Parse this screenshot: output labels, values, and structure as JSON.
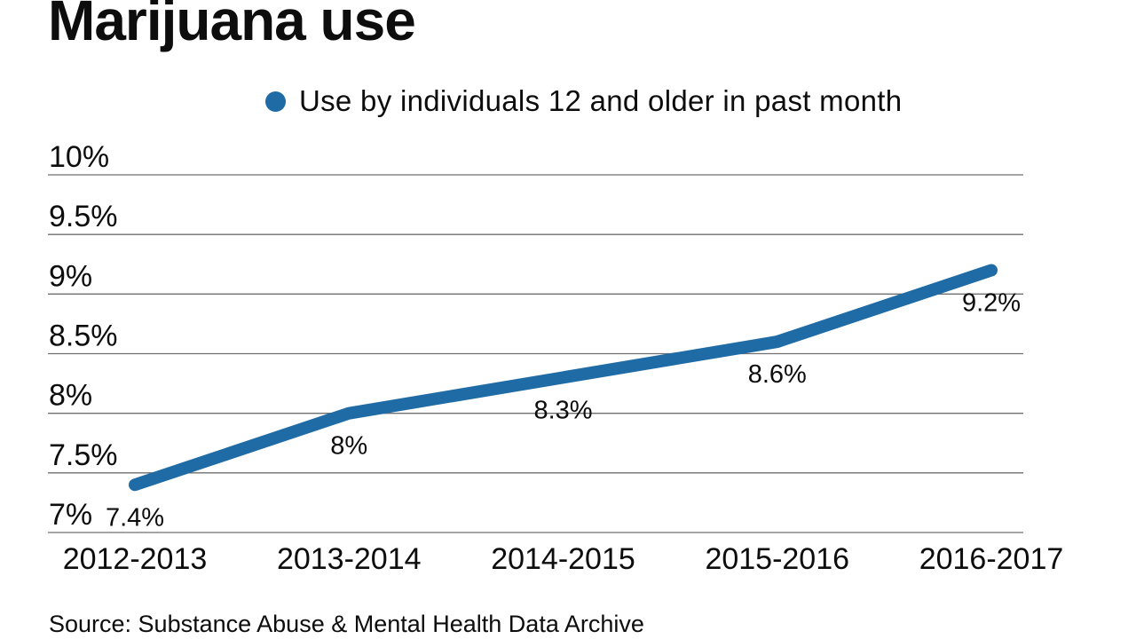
{
  "title": "Marijuana use",
  "legend": {
    "label": "Use by individuals 12 and older in past month"
  },
  "source": "Source: Substance Abuse & Mental Health Data Archive",
  "colors": {
    "line": "#1f6ba6",
    "marker": "#1f6ba6",
    "grid": "#6f6f6f",
    "text": "#0d0d0d"
  },
  "chart_data": {
    "type": "line",
    "title": "Marijuana use",
    "categories": [
      "2012-2013",
      "2013-2014",
      "2014-2015",
      "2015-2016",
      "2016-2017"
    ],
    "series": [
      {
        "name": "Use by individuals 12 and older in past month",
        "values": [
          7.4,
          8.0,
          8.3,
          8.6,
          9.2
        ],
        "point_labels": [
          "7.4%",
          "8%",
          "8.3%",
          "8.6%",
          "9.2%"
        ]
      }
    ],
    "xlabel": "",
    "ylabel": "",
    "ylim": [
      7,
      10
    ],
    "yticks": [
      {
        "value": 7,
        "label": "7%"
      },
      {
        "value": 7.5,
        "label": "7.5%"
      },
      {
        "value": 8,
        "label": "8%"
      },
      {
        "value": 8.5,
        "label": "8.5%"
      },
      {
        "value": 9,
        "label": "9%"
      },
      {
        "value": 9.5,
        "label": "9.5%"
      },
      {
        "value": 10,
        "label": "10%"
      }
    ],
    "grid": true,
    "legend_position": "top-right"
  }
}
